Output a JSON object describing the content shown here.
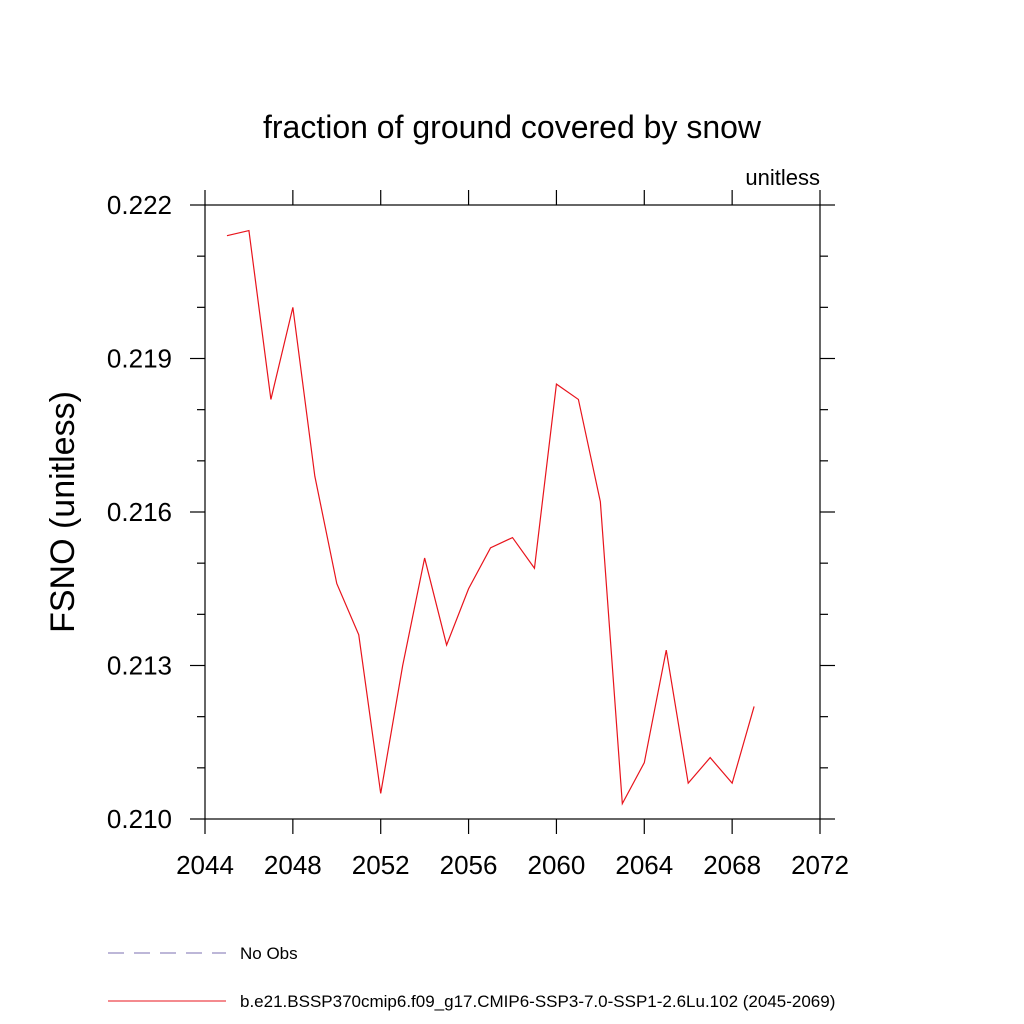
{
  "chart_data": {
    "type": "line",
    "title": "fraction of ground covered by snow",
    "units_label": "unitless",
    "ylabel": "FSNO  (unitless)",
    "xlabel": "",
    "xlim": [
      2044,
      2072
    ],
    "ylim": [
      0.21,
      0.222
    ],
    "x_ticks": [
      2044,
      2048,
      2052,
      2056,
      2060,
      2064,
      2068,
      2072
    ],
    "x_tick_labels": [
      "2044",
      "2048",
      "2052",
      "2056",
      "2060",
      "2064",
      "2068",
      "2072"
    ],
    "x_minor_step": 1,
    "y_ticks": [
      0.21,
      0.213,
      0.216,
      0.219,
      0.222
    ],
    "y_tick_labels": [
      "0.210",
      "0.213",
      "0.216",
      "0.219",
      "0.222"
    ],
    "y_minor_step": 0.001,
    "grid": false,
    "series": [
      {
        "name": "b.e21.BSSP370cmip6.f09_g17.CMIP6-SSP3-7.0-SSP1-2.6Lu.102 (2045-2069)",
        "color": "#e8141c",
        "style": "solid",
        "x": [
          2045,
          2046,
          2047,
          2048,
          2049,
          2050,
          2051,
          2052,
          2053,
          2054,
          2055,
          2056,
          2057,
          2058,
          2059,
          2060,
          2061,
          2062,
          2063,
          2064,
          2065,
          2066,
          2067,
          2068,
          2069
        ],
        "values": [
          0.2214,
          0.2215,
          0.2182,
          0.22,
          0.2167,
          0.2146,
          0.2136,
          0.2105,
          0.213,
          0.2151,
          0.2134,
          0.2145,
          0.2153,
          0.2155,
          0.2149,
          0.2185,
          0.2182,
          0.2162,
          0.2103,
          0.2111,
          0.2133,
          0.2107,
          0.2112,
          0.2107,
          0.2122
        ]
      }
    ],
    "legend": [
      {
        "label": "No Obs",
        "color": "#7b6fb0",
        "style": "dashed"
      },
      {
        "label": "b.e21.BSSP370cmip6.f09_g17.CMIP6-SSP3-7.0-SSP1-2.6Lu.102 (2045-2069)",
        "color": "#e8141c",
        "style": "solid"
      }
    ],
    "legend_position": "bottom-left"
  }
}
